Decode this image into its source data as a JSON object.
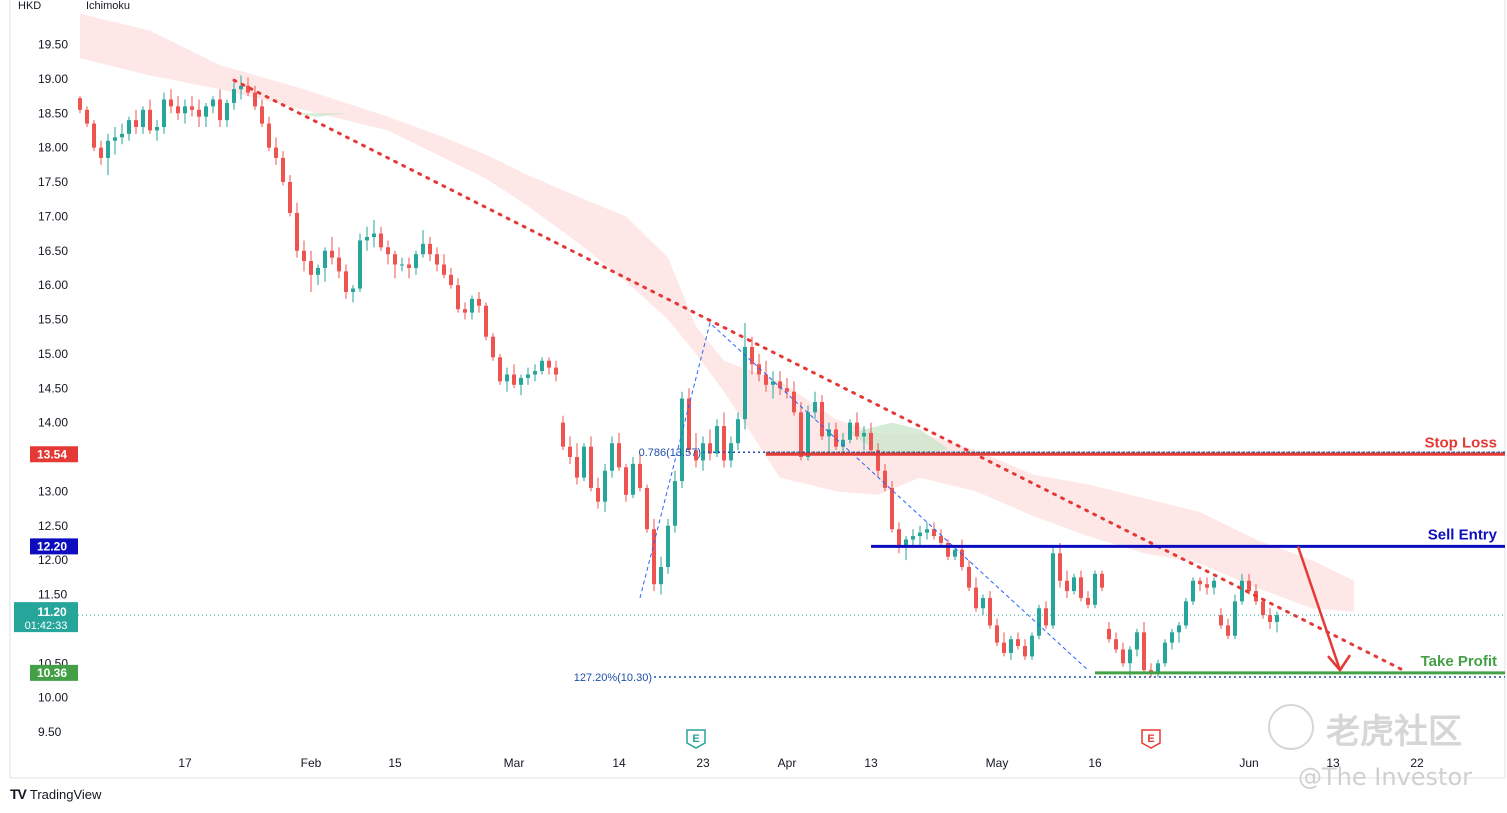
{
  "chart_data": {
    "type": "candlestick",
    "currency_label": "HKD",
    "indicator_label": "Ichimoku",
    "ylim": [
      9.25,
      20.05
    ],
    "y_ticks": [
      19.5,
      19.0,
      18.5,
      18.0,
      17.5,
      17.0,
      16.5,
      16.0,
      15.5,
      15.0,
      14.5,
      14.0,
      13.0,
      12.5,
      12.0,
      11.5,
      10.5,
      10.0,
      9.5
    ],
    "y_tick_labels": [
      "19.50",
      "19.00",
      "18.50",
      "18.00",
      "17.50",
      "17.00",
      "16.50",
      "16.00",
      "15.50",
      "15.00",
      "14.50",
      "14.00",
      "13.00",
      "12.50",
      "12.00",
      "11.50",
      "10.50",
      "10.00",
      "9.50"
    ],
    "x_ticks": [
      {
        "label": "17",
        "t": 15
      },
      {
        "label": "Feb",
        "t": 33
      },
      {
        "label": "15",
        "t": 45
      },
      {
        "label": "Mar",
        "t": 62
      },
      {
        "label": "14",
        "t": 77
      },
      {
        "label": "23",
        "t": 89
      },
      {
        "label": "Apr",
        "t": 101
      },
      {
        "label": "13",
        "t": 113
      },
      {
        "label": "May",
        "t": 131
      },
      {
        "label": "16",
        "t": 145
      },
      {
        "label": "Jun",
        "t": 167
      },
      {
        "label": "13",
        "t": 179
      },
      {
        "label": "22",
        "t": 191
      }
    ],
    "price_markers": [
      {
        "name": "stop-loss",
        "label": "13.54",
        "value": 13.54,
        "color": "#e53935"
      },
      {
        "name": "sell-entry",
        "label": "12.20",
        "value": 12.2,
        "color": "#0d0dbf"
      },
      {
        "name": "take-profit",
        "label": "10.36",
        "value": 10.36,
        "color": "#43a047"
      }
    ],
    "last_price": {
      "label": "11.20",
      "countdown": "01:42:33",
      "value": 11.2,
      "color": "#26a69a"
    },
    "levels": [
      {
        "name": "Stop Loss",
        "value": 13.54,
        "t_start": 98,
        "color": "#e53935"
      },
      {
        "name": "Sell Entry",
        "value": 12.2,
        "t_start": 113,
        "color": "#0d0dbf"
      },
      {
        "name": "Take Profit",
        "value": 10.36,
        "t_start": 145,
        "color": "#43a047"
      }
    ],
    "fib_labels": [
      {
        "text": "0.786(13.57)",
        "value": 13.57,
        "t_start": 89
      },
      {
        "text": "127.20%(10.30)",
        "value": 10.3,
        "t_start": 82
      }
    ],
    "trendline": {
      "t0": 22,
      "v0": 18.98,
      "t1": 189,
      "v1": 10.4,
      "color": "#e53935"
    },
    "fib_path": [
      {
        "t": 80,
        "v": 11.45
      },
      {
        "t": 90,
        "v": 15.45
      },
      {
        "t": 144,
        "v": 10.4
      }
    ],
    "projection": {
      "t0": 174,
      "v0": 12.2,
      "t1": 180,
      "v1": 10.4,
      "color": "#e53935"
    },
    "earnings_markers": [
      {
        "label": "E",
        "t": 88,
        "color": "#26a69a"
      },
      {
        "label": "E",
        "t": 153,
        "color": "#e53935"
      }
    ],
    "cloud": {
      "top": [
        [
          0,
          19.95
        ],
        [
          10,
          19.7
        ],
        [
          20,
          19.2
        ],
        [
          32,
          18.85
        ],
        [
          44,
          18.45
        ],
        [
          52,
          18.15
        ],
        [
          58,
          17.9
        ],
        [
          64,
          17.6
        ],
        [
          72,
          17.25
        ],
        [
          78,
          17.0
        ],
        [
          84,
          16.4
        ],
        [
          88,
          15.4
        ],
        [
          92,
          14.9
        ],
        [
          100,
          14.6
        ],
        [
          108,
          14.05
        ],
        [
          114,
          13.85
        ],
        [
          120,
          13.85
        ],
        [
          128,
          13.6
        ],
        [
          136,
          13.25
        ],
        [
          144,
          13.1
        ],
        [
          152,
          12.9
        ],
        [
          160,
          12.7
        ],
        [
          168,
          12.3
        ],
        [
          176,
          12.0
        ],
        [
          182,
          11.7
        ]
      ],
      "bottom": [
        [
          0,
          19.3
        ],
        [
          10,
          19.05
        ],
        [
          20,
          18.85
        ],
        [
          32,
          18.55
        ],
        [
          44,
          18.25
        ],
        [
          52,
          17.85
        ],
        [
          58,
          17.55
        ],
        [
          64,
          17.15
        ],
        [
          72,
          16.55
        ],
        [
          78,
          16.05
        ],
        [
          84,
          15.5
        ],
        [
          88,
          15.0
        ],
        [
          92,
          14.45
        ],
        [
          100,
          13.2
        ],
        [
          108,
          13.0
        ],
        [
          114,
          12.95
        ],
        [
          120,
          13.2
        ],
        [
          128,
          13.0
        ],
        [
          136,
          12.65
        ],
        [
          144,
          12.35
        ],
        [
          152,
          12.1
        ],
        [
          160,
          11.95
        ],
        [
          168,
          11.6
        ],
        [
          176,
          11.3
        ],
        [
          182,
          11.25
        ]
      ],
      "green_patches": [
        {
          "pts": [
            [
              110,
              13.85
            ],
            [
              114,
              13.58
            ],
            [
              120,
              13.52
            ],
            [
              124,
              13.62
            ],
            [
              120,
              13.9
            ],
            [
              116,
              14.0
            ],
            [
              112,
              13.9
            ]
          ]
        },
        {
          "pts": [
            [
              30,
              18.5
            ],
            [
              34,
              18.45
            ],
            [
              38,
              18.5
            ]
          ]
        }
      ]
    },
    "candles": [
      [
        18.72,
        18.75,
        18.5,
        18.55
      ],
      [
        18.55,
        18.6,
        18.3,
        18.35
      ],
      [
        18.35,
        18.4,
        17.95,
        18.0
      ],
      [
        18.0,
        18.1,
        17.75,
        17.85
      ],
      [
        17.85,
        18.2,
        17.6,
        18.1
      ],
      [
        18.1,
        18.3,
        17.9,
        18.15
      ],
      [
        18.15,
        18.35,
        18.05,
        18.2
      ],
      [
        18.2,
        18.45,
        18.1,
        18.4
      ],
      [
        18.4,
        18.55,
        18.2,
        18.3
      ],
      [
        18.3,
        18.6,
        18.2,
        18.55
      ],
      [
        18.55,
        18.7,
        18.2,
        18.25
      ],
      [
        18.25,
        18.4,
        18.1,
        18.3
      ],
      [
        18.3,
        18.8,
        18.2,
        18.7
      ],
      [
        18.7,
        18.85,
        18.5,
        18.6
      ],
      [
        18.6,
        18.75,
        18.4,
        18.5
      ],
      [
        18.5,
        18.7,
        18.35,
        18.6
      ],
      [
        18.6,
        18.75,
        18.45,
        18.55
      ],
      [
        18.55,
        18.7,
        18.3,
        18.45
      ],
      [
        18.45,
        18.65,
        18.3,
        18.6
      ],
      [
        18.6,
        18.75,
        18.5,
        18.7
      ],
      [
        18.7,
        18.85,
        18.3,
        18.4
      ],
      [
        18.4,
        18.7,
        18.3,
        18.65
      ],
      [
        18.65,
        18.95,
        18.55,
        18.85
      ],
      [
        18.85,
        19.05,
        18.7,
        18.9
      ],
      [
        18.9,
        19.02,
        18.75,
        18.8
      ],
      [
        18.8,
        18.9,
        18.55,
        18.6
      ],
      [
        18.6,
        18.7,
        18.3,
        18.35
      ],
      [
        18.35,
        18.45,
        17.95,
        18.0
      ],
      [
        18.0,
        18.15,
        17.75,
        17.85
      ],
      [
        17.85,
        17.95,
        17.45,
        17.5
      ],
      [
        17.5,
        17.6,
        17.0,
        17.05
      ],
      [
        17.05,
        17.2,
        16.4,
        16.5
      ],
      [
        16.5,
        16.65,
        16.2,
        16.35
      ],
      [
        16.35,
        16.5,
        15.9,
        16.15
      ],
      [
        16.15,
        16.3,
        16.0,
        16.25
      ],
      [
        16.25,
        16.55,
        16.05,
        16.5
      ],
      [
        16.5,
        16.7,
        16.3,
        16.4
      ],
      [
        16.4,
        16.55,
        16.1,
        16.2
      ],
      [
        16.2,
        16.3,
        15.8,
        15.9
      ],
      [
        15.9,
        16.0,
        15.75,
        15.95
      ],
      [
        15.95,
        16.75,
        15.9,
        16.65
      ],
      [
        16.65,
        16.85,
        16.5,
        16.7
      ],
      [
        16.7,
        16.95,
        16.55,
        16.75
      ],
      [
        16.75,
        16.85,
        16.5,
        16.55
      ],
      [
        16.55,
        16.65,
        16.3,
        16.45
      ],
      [
        16.45,
        16.5,
        16.1,
        16.3
      ],
      [
        16.3,
        16.4,
        16.2,
        16.3
      ],
      [
        16.3,
        16.4,
        16.1,
        16.25
      ],
      [
        16.25,
        16.5,
        16.15,
        16.45
      ],
      [
        16.45,
        16.8,
        16.4,
        16.6
      ],
      [
        16.6,
        16.7,
        16.35,
        16.45
      ],
      [
        16.45,
        16.55,
        16.2,
        16.3
      ],
      [
        16.3,
        16.45,
        16.1,
        16.15
      ],
      [
        16.15,
        16.25,
        15.95,
        16.0
      ],
      [
        16.0,
        16.1,
        15.6,
        15.65
      ],
      [
        15.65,
        15.75,
        15.5,
        15.6
      ],
      [
        15.6,
        15.85,
        15.5,
        15.8
      ],
      [
        15.8,
        15.9,
        15.6,
        15.7
      ],
      [
        15.7,
        15.75,
        15.2,
        15.25
      ],
      [
        15.25,
        15.3,
        14.9,
        14.95
      ],
      [
        14.95,
        15.0,
        14.55,
        14.6
      ],
      [
        14.6,
        14.8,
        14.45,
        14.7
      ],
      [
        14.7,
        14.85,
        14.5,
        14.55
      ],
      [
        14.55,
        14.7,
        14.4,
        14.65
      ],
      [
        14.65,
        14.8,
        14.55,
        14.7
      ],
      [
        14.7,
        14.85,
        14.6,
        14.75
      ],
      [
        14.75,
        14.95,
        14.7,
        14.9
      ],
      [
        14.9,
        14.95,
        14.7,
        14.8
      ],
      [
        14.8,
        14.9,
        14.6,
        14.7
      ],
      [
        14.0,
        14.1,
        13.6,
        13.65
      ],
      [
        13.65,
        13.8,
        13.4,
        13.5
      ],
      [
        13.5,
        13.7,
        13.1,
        13.2
      ],
      [
        13.2,
        13.7,
        13.15,
        13.65
      ],
      [
        13.65,
        13.8,
        13.0,
        13.05
      ],
      [
        13.05,
        13.2,
        12.75,
        12.85
      ],
      [
        12.85,
        13.4,
        12.7,
        13.3
      ],
      [
        13.3,
        13.8,
        13.2,
        13.7
      ],
      [
        13.7,
        13.85,
        13.3,
        13.35
      ],
      [
        13.35,
        13.4,
        12.85,
        12.95
      ],
      [
        12.95,
        13.5,
        12.9,
        13.4
      ],
      [
        13.4,
        13.55,
        13.0,
        13.05
      ],
      [
        13.05,
        13.1,
        12.4,
        12.45
      ],
      [
        12.45,
        12.6,
        11.55,
        11.65
      ],
      [
        11.65,
        12.05,
        11.5,
        11.9
      ],
      [
        11.9,
        12.6,
        11.8,
        12.5
      ],
      [
        12.5,
        13.3,
        12.4,
        13.15
      ],
      [
        13.15,
        14.45,
        13.05,
        14.35
      ],
      [
        14.35,
        14.5,
        13.55,
        13.6
      ],
      [
        13.6,
        13.85,
        13.35,
        13.45
      ],
      [
        13.45,
        13.8,
        13.3,
        13.7
      ],
      [
        13.7,
        13.9,
        13.45,
        13.55
      ],
      [
        13.55,
        14.05,
        13.5,
        13.95
      ],
      [
        13.95,
        14.15,
        13.35,
        13.45
      ],
      [
        13.45,
        13.8,
        13.35,
        13.7
      ],
      [
        13.7,
        14.15,
        13.6,
        14.05
      ],
      [
        14.05,
        15.45,
        13.9,
        15.1
      ],
      [
        15.1,
        15.25,
        14.7,
        14.85
      ],
      [
        14.85,
        15.0,
        14.6,
        14.7
      ],
      [
        14.7,
        14.9,
        14.45,
        14.55
      ],
      [
        14.55,
        14.75,
        14.35,
        14.6
      ],
      [
        14.6,
        14.75,
        14.4,
        14.5
      ],
      [
        14.5,
        14.65,
        14.35,
        14.45
      ],
      [
        14.45,
        14.6,
        14.1,
        14.15
      ],
      [
        14.15,
        14.3,
        13.45,
        13.5
      ],
      [
        13.5,
        14.25,
        13.45,
        14.15
      ],
      [
        14.15,
        14.45,
        14.05,
        14.3
      ],
      [
        14.3,
        14.4,
        13.75,
        13.8
      ],
      [
        13.8,
        14.0,
        13.55,
        13.9
      ],
      [
        13.9,
        14.0,
        13.6,
        13.65
      ],
      [
        13.65,
        13.85,
        13.55,
        13.75
      ],
      [
        13.75,
        14.05,
        13.7,
        14.0
      ],
      [
        14.0,
        14.15,
        13.75,
        13.8
      ],
      [
        13.8,
        13.95,
        13.6,
        13.85
      ],
      [
        13.85,
        14.0,
        13.55,
        13.6
      ],
      [
        13.6,
        13.7,
        13.2,
        13.3
      ],
      [
        13.3,
        13.4,
        13.0,
        13.05
      ],
      [
        13.05,
        13.15,
        12.4,
        12.45
      ],
      [
        12.45,
        12.55,
        12.1,
        12.2
      ],
      [
        12.2,
        12.35,
        12.0,
        12.3
      ],
      [
        12.3,
        12.45,
        12.2,
        12.35
      ],
      [
        12.35,
        12.5,
        12.2,
        12.4
      ],
      [
        12.4,
        12.55,
        12.3,
        12.45
      ],
      [
        12.45,
        12.55,
        12.3,
        12.35
      ],
      [
        12.35,
        12.45,
        12.2,
        12.25
      ],
      [
        12.25,
        12.3,
        12.0,
        12.05
      ],
      [
        12.05,
        12.2,
        12.0,
        12.15
      ],
      [
        12.15,
        12.3,
        11.85,
        11.9
      ],
      [
        11.9,
        12.0,
        11.55,
        11.6
      ],
      [
        11.6,
        11.75,
        11.25,
        11.3
      ],
      [
        11.3,
        11.5,
        11.2,
        11.45
      ],
      [
        11.45,
        11.55,
        11.0,
        11.05
      ],
      [
        11.05,
        11.15,
        10.75,
        10.8
      ],
      [
        10.8,
        10.95,
        10.6,
        10.65
      ],
      [
        10.65,
        10.9,
        10.55,
        10.85
      ],
      [
        10.85,
        10.95,
        10.7,
        10.75
      ],
      [
        10.75,
        10.85,
        10.55,
        10.6
      ],
      [
        10.6,
        10.95,
        10.55,
        10.9
      ],
      [
        10.9,
        11.35,
        10.85,
        11.3
      ],
      [
        11.3,
        11.4,
        11.0,
        11.05
      ],
      [
        11.05,
        12.2,
        11.0,
        12.1
      ],
      [
        12.1,
        12.25,
        11.6,
        11.7
      ],
      [
        11.7,
        11.85,
        11.45,
        11.55
      ],
      [
        11.55,
        11.8,
        11.5,
        11.75
      ],
      [
        11.75,
        11.85,
        11.4,
        11.45
      ],
      [
        11.45,
        11.55,
        11.3,
        11.35
      ],
      [
        11.35,
        11.85,
        11.3,
        11.8
      ],
      [
        11.8,
        11.85,
        11.55,
        11.6
      ],
      [
        11.0,
        11.1,
        10.8,
        10.85
      ],
      [
        10.85,
        10.95,
        10.65,
        10.7
      ],
      [
        10.7,
        10.8,
        10.45,
        10.5
      ],
      [
        10.5,
        10.75,
        10.3,
        10.7
      ],
      [
        10.7,
        11.0,
        10.6,
        10.95
      ],
      [
        10.95,
        11.1,
        10.35,
        10.4
      ],
      [
        10.4,
        10.5,
        10.3,
        10.35
      ],
      [
        10.35,
        10.55,
        10.3,
        10.5
      ],
      [
        10.5,
        10.85,
        10.45,
        10.8
      ],
      [
        10.8,
        11.0,
        10.7,
        10.95
      ],
      [
        10.95,
        11.1,
        10.8,
        11.05
      ],
      [
        11.05,
        11.45,
        11.0,
        11.4
      ],
      [
        11.4,
        11.75,
        11.35,
        11.7
      ],
      [
        11.7,
        11.75,
        11.55,
        11.65
      ],
      [
        11.65,
        11.75,
        11.5,
        11.6
      ],
      [
        11.6,
        11.75,
        11.5,
        11.7
      ],
      [
        11.2,
        11.3,
        11.0,
        11.05
      ],
      [
        11.05,
        11.15,
        10.85,
        10.9
      ],
      [
        10.9,
        11.5,
        10.85,
        11.4
      ],
      [
        11.4,
        11.8,
        11.35,
        11.7
      ],
      [
        11.7,
        11.8,
        11.5,
        11.55
      ],
      [
        11.55,
        11.65,
        11.35,
        11.4
      ],
      [
        11.4,
        11.45,
        11.15,
        11.2
      ],
      [
        11.2,
        11.3,
        11.0,
        11.1
      ],
      [
        11.1,
        11.25,
        10.95,
        11.2
      ]
    ]
  },
  "footer": {
    "brand": "TradingView"
  },
  "watermark": {
    "text": "老虎社区",
    "author": "@The Investor"
  }
}
